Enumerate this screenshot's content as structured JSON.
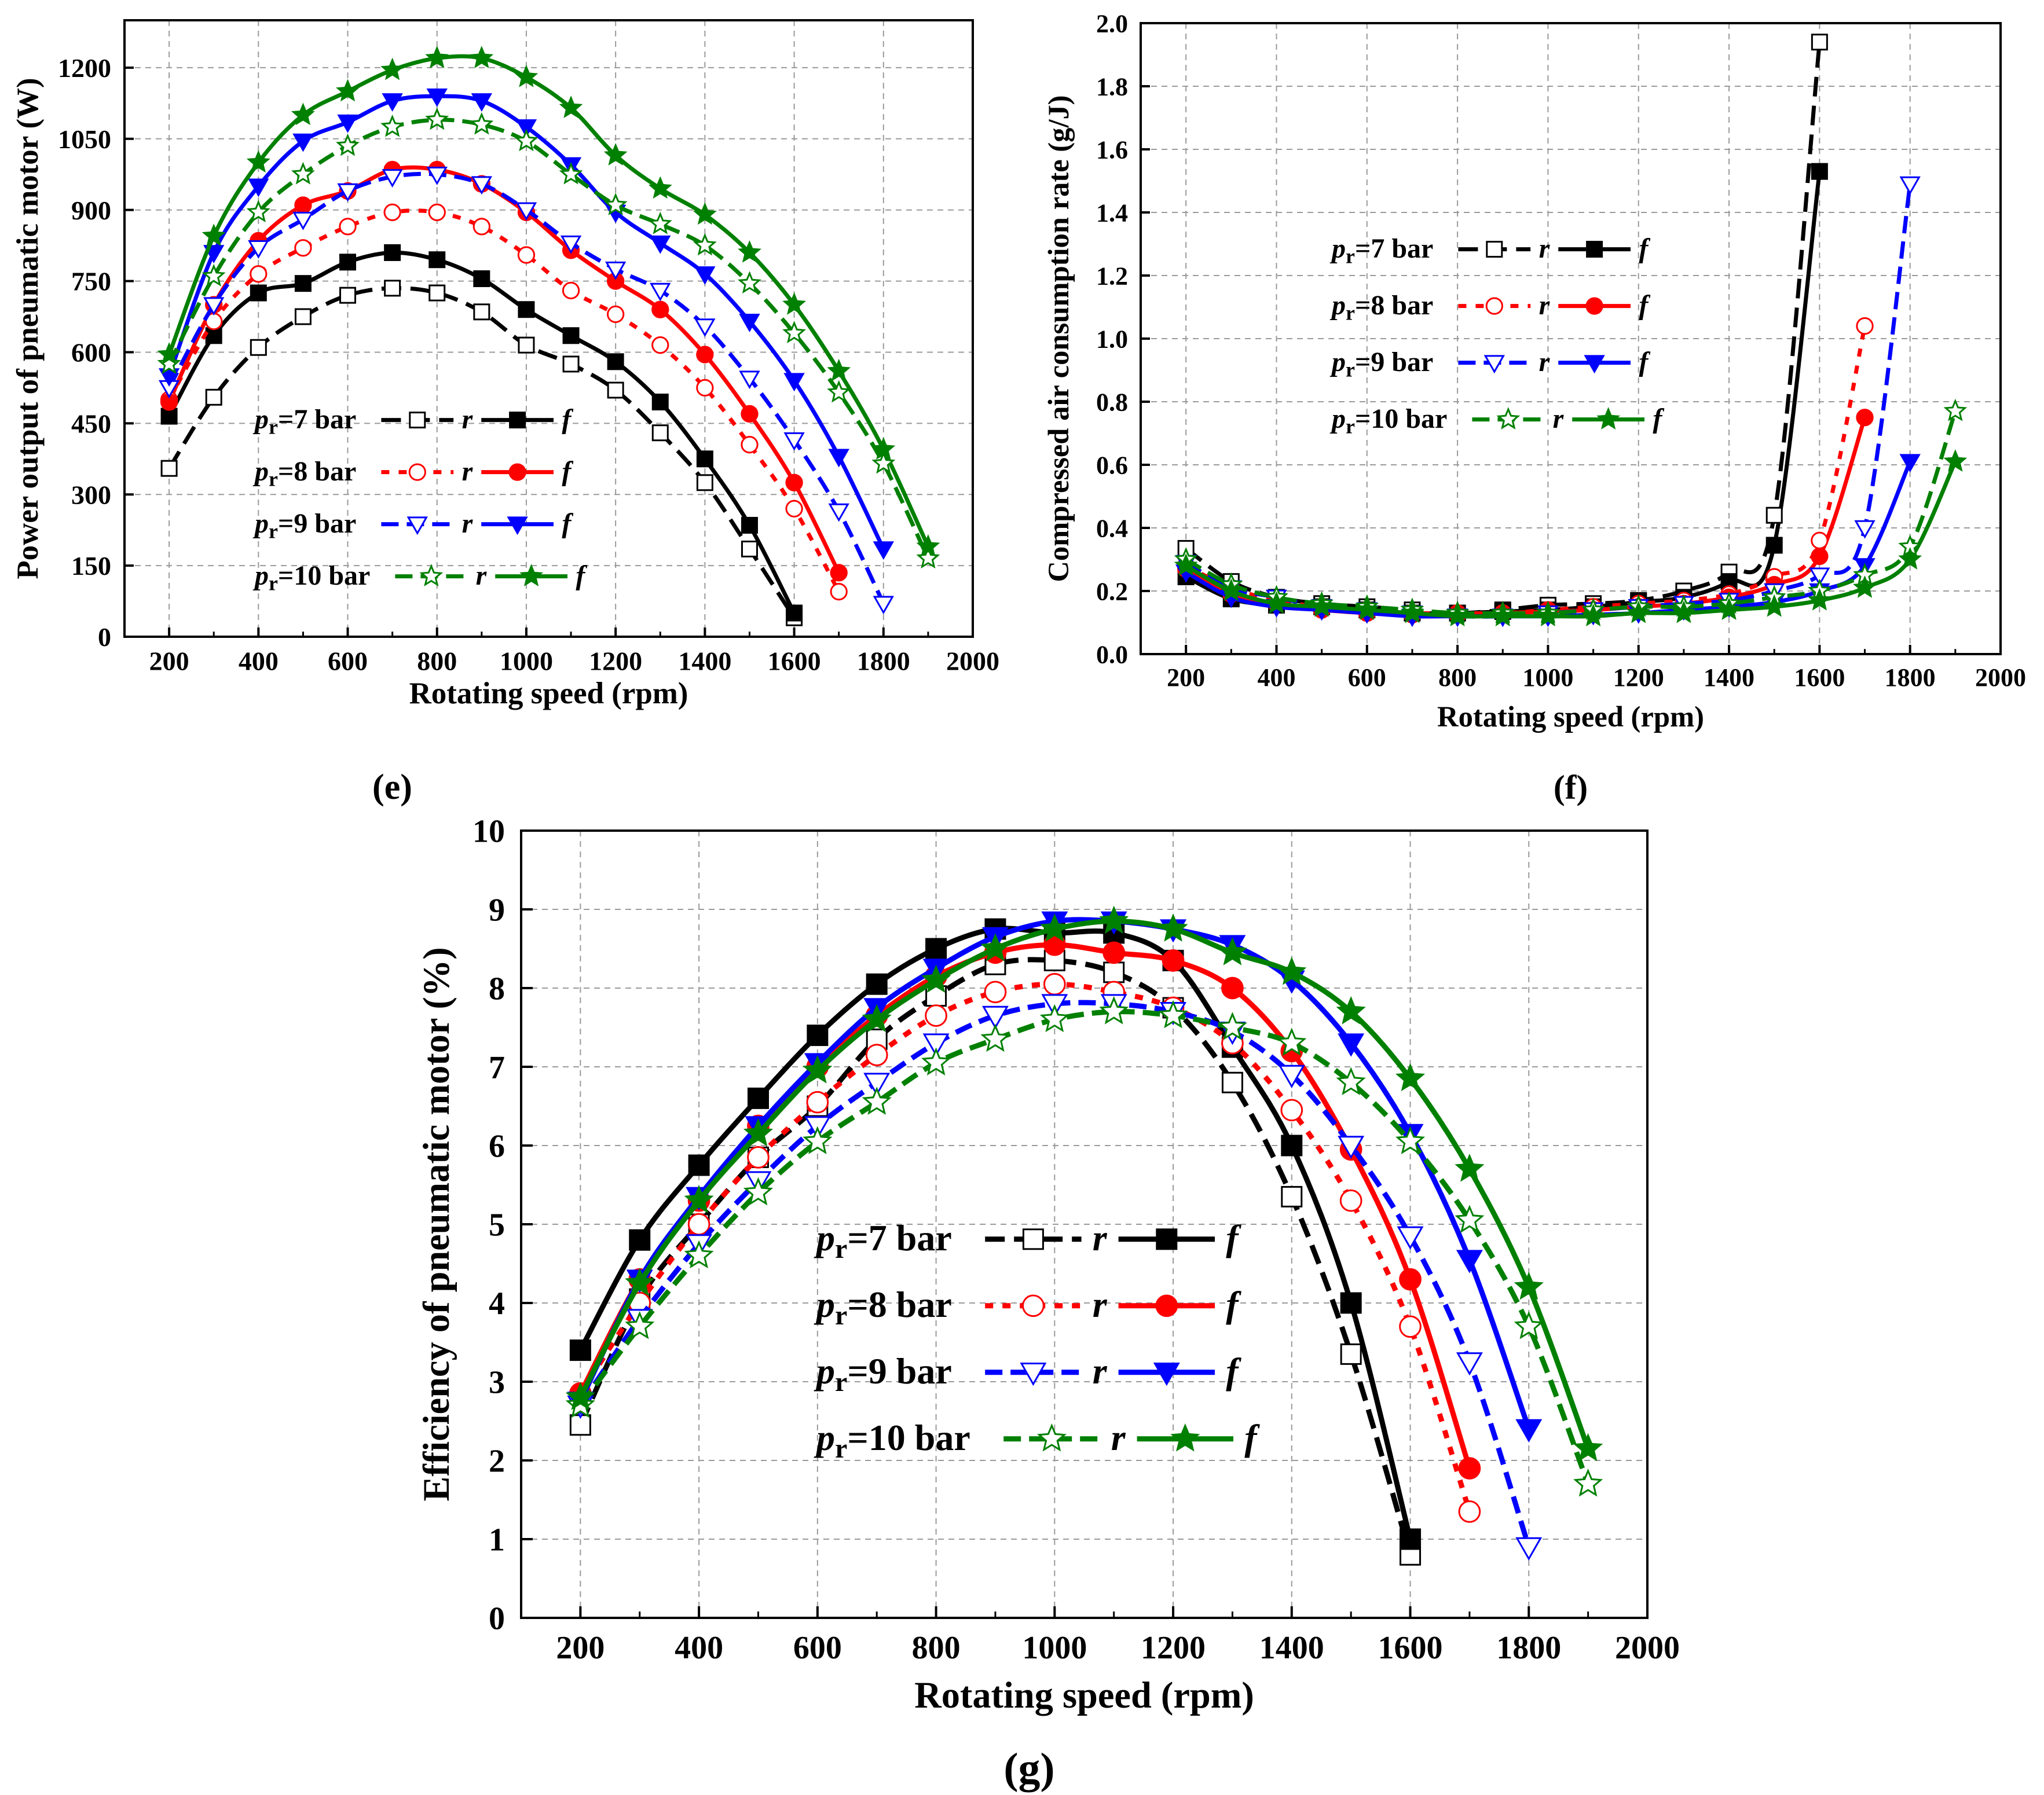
{
  "colors": {
    "7": "#000000",
    "8": "#ff0000",
    "9": "#0000ff",
    "10": "#008000"
  },
  "legend_labels": {
    "p": "p",
    "sub": "r",
    "r": "r",
    "f": "f"
  },
  "chart_data": [
    {
      "id": "e",
      "type": "line",
      "panel_label": "(e)",
      "xlabel": "Rotating speed (rpm)",
      "ylabel": "Power output of pneumatic motor (W)",
      "xlim": [
        100,
        2000
      ],
      "ylim": [
        0,
        1300
      ],
      "xticks": [
        200,
        400,
        600,
        800,
        1000,
        1200,
        1400,
        1600,
        1800,
        2000
      ],
      "yticks": [
        0,
        150,
        300,
        450,
        600,
        750,
        900,
        1050,
        1200
      ],
      "grid": true,
      "legend_position": "lower-left",
      "series": [
        {
          "pressure": "7",
          "label": "=7 bar",
          "x": [
            200,
            300,
            400,
            500,
            600,
            700,
            800,
            900,
            1000,
            1100,
            1200,
            1300,
            1400,
            1500,
            1600
          ],
          "r": [
            355,
            505,
            610,
            675,
            720,
            735,
            725,
            685,
            615,
            575,
            520,
            430,
            325,
            185,
            40
          ],
          "f": [
            465,
            635,
            725,
            745,
            790,
            810,
            795,
            755,
            690,
            635,
            580,
            495,
            375,
            235,
            50
          ]
        },
        {
          "pressure": "8",
          "label": "=8 bar",
          "x": [
            200,
            300,
            400,
            500,
            600,
            700,
            800,
            900,
            1000,
            1100,
            1200,
            1300,
            1400,
            1500,
            1600,
            1700
          ],
          "r": [
            500,
            665,
            765,
            820,
            865,
            895,
            895,
            865,
            805,
            730,
            680,
            615,
            525,
            405,
            270,
            95
          ],
          "f": [
            495,
            700,
            835,
            910,
            940,
            985,
            985,
            955,
            895,
            815,
            750,
            690,
            595,
            470,
            325,
            135
          ]
        },
        {
          "pressure": "9",
          "label": "=9 bar",
          "x": [
            200,
            300,
            400,
            500,
            600,
            700,
            800,
            900,
            1000,
            1100,
            1200,
            1300,
            1400,
            1500,
            1600,
            1700,
            1800
          ],
          "r": [
            525,
            700,
            820,
            880,
            940,
            970,
            975,
            955,
            900,
            830,
            775,
            730,
            655,
            545,
            415,
            265,
            70
          ],
          "f": [
            550,
            810,
            950,
            1045,
            1085,
            1130,
            1140,
            1130,
            1075,
            995,
            895,
            830,
            765,
            665,
            540,
            380,
            185
          ]
        },
        {
          "pressure": "10",
          "label": "=10 bar",
          "x": [
            200,
            300,
            400,
            500,
            600,
            700,
            800,
            900,
            1000,
            1100,
            1200,
            1300,
            1400,
            1500,
            1600,
            1700,
            1800,
            1900
          ],
          "r": [
            575,
            760,
            895,
            975,
            1035,
            1075,
            1090,
            1080,
            1045,
            975,
            910,
            870,
            825,
            745,
            640,
            515,
            365,
            165
          ],
          "f": [
            595,
            845,
            1000,
            1100,
            1150,
            1195,
            1220,
            1220,
            1180,
            1115,
            1015,
            945,
            890,
            810,
            700,
            560,
            395,
            190
          ]
        }
      ]
    },
    {
      "id": "f",
      "type": "line",
      "panel_label": "(f)",
      "xlabel": "Rotating speed (rpm)",
      "ylabel": "Compressed air consumption rate  (g/J)",
      "xlim": [
        100,
        2000
      ],
      "ylim": [
        0,
        2.0
      ],
      "xticks": [
        200,
        400,
        600,
        800,
        1000,
        1200,
        1400,
        1600,
        1800,
        2000
      ],
      "yticks": [
        0.0,
        0.2,
        0.4,
        0.6,
        0.8,
        1.0,
        1.2,
        1.4,
        1.6,
        1.8,
        2.0
      ],
      "ytick_labels": [
        "0.0",
        "0.2",
        "0.4",
        "0.6",
        "0.8",
        "1.0",
        "1.2",
        "1.4",
        "1.6",
        "1.8",
        "2.0"
      ],
      "grid": true,
      "legend_position": "upper-left",
      "series": [
        {
          "pressure": "7",
          "label": "=7 bar",
          "x": [
            200,
            300,
            400,
            500,
            600,
            700,
            800,
            900,
            1000,
            1100,
            1200,
            1300,
            1400,
            1500,
            1600
          ],
          "r": [
            0.335,
            0.23,
            0.18,
            0.16,
            0.15,
            0.14,
            0.13,
            0.14,
            0.155,
            0.16,
            0.17,
            0.2,
            0.26,
            0.44,
            1.94
          ],
          "f": [
            0.245,
            0.175,
            0.155,
            0.15,
            0.14,
            0.13,
            0.13,
            0.135,
            0.14,
            0.15,
            0.165,
            0.18,
            0.23,
            0.345,
            1.53
          ]
        },
        {
          "pressure": "8",
          "label": "=8 bar",
          "x": [
            200,
            300,
            400,
            500,
            600,
            700,
            800,
            900,
            1000,
            1100,
            1200,
            1300,
            1400,
            1500,
            1600,
            1700
          ],
          "r": [
            0.28,
            0.21,
            0.17,
            0.15,
            0.14,
            0.13,
            0.13,
            0.13,
            0.14,
            0.15,
            0.16,
            0.17,
            0.19,
            0.245,
            0.36,
            1.04
          ],
          "f": [
            0.27,
            0.19,
            0.16,
            0.14,
            0.13,
            0.125,
            0.125,
            0.13,
            0.135,
            0.14,
            0.15,
            0.16,
            0.18,
            0.22,
            0.31,
            0.75
          ]
        },
        {
          "pressure": "9",
          "label": "=9 bar",
          "x": [
            200,
            300,
            400,
            500,
            600,
            700,
            800,
            900,
            1000,
            1100,
            1200,
            1300,
            1400,
            1500,
            1600,
            1700,
            1800
          ],
          "r": [
            0.29,
            0.21,
            0.18,
            0.15,
            0.14,
            0.13,
            0.12,
            0.12,
            0.13,
            0.14,
            0.15,
            0.16,
            0.17,
            0.2,
            0.25,
            0.4,
            1.49
          ],
          "f": [
            0.26,
            0.18,
            0.15,
            0.14,
            0.13,
            0.12,
            0.12,
            0.12,
            0.12,
            0.125,
            0.13,
            0.14,
            0.15,
            0.165,
            0.2,
            0.28,
            0.61
          ]
        },
        {
          "pressure": "10",
          "label": "=10 bar",
          "x": [
            200,
            300,
            400,
            500,
            600,
            700,
            800,
            900,
            1000,
            1100,
            1200,
            1300,
            1400,
            1500,
            1600,
            1700,
            1800,
            1900
          ],
          "r": [
            0.3,
            0.22,
            0.18,
            0.16,
            0.15,
            0.14,
            0.13,
            0.13,
            0.13,
            0.14,
            0.15,
            0.15,
            0.16,
            0.18,
            0.2,
            0.25,
            0.34,
            0.77
          ],
          "f": [
            0.28,
            0.2,
            0.16,
            0.15,
            0.14,
            0.13,
            0.12,
            0.12,
            0.12,
            0.12,
            0.13,
            0.13,
            0.14,
            0.15,
            0.17,
            0.21,
            0.3,
            0.61
          ]
        }
      ]
    },
    {
      "id": "g",
      "type": "line",
      "panel_label": "(g)",
      "xlabel": "Rotating speed (rpm)",
      "ylabel": "Efficiency of pneumatic motor (%)",
      "xlim": [
        100,
        2000
      ],
      "ylim": [
        0,
        10
      ],
      "xticks": [
        200,
        400,
        600,
        800,
        1000,
        1200,
        1400,
        1600,
        1800,
        2000
      ],
      "yticks": [
        0,
        1,
        2,
        3,
        4,
        5,
        6,
        7,
        8,
        9,
        10
      ],
      "grid": true,
      "legend_position": "center",
      "series": [
        {
          "pressure": "7",
          "label": "=7 bar",
          "x": [
            200,
            300,
            400,
            500,
            600,
            700,
            800,
            900,
            1000,
            1100,
            1200,
            1300,
            1400,
            1500,
            1600
          ],
          "r": [
            2.45,
            4.05,
            5.0,
            5.85,
            6.5,
            7.35,
            7.9,
            8.3,
            8.35,
            8.2,
            7.75,
            6.8,
            5.35,
            3.35,
            0.8
          ],
          "f": [
            3.4,
            4.8,
            5.75,
            6.6,
            7.4,
            8.05,
            8.5,
            8.75,
            8.7,
            8.7,
            8.35,
            7.25,
            6.0,
            4.0,
            1.0
          ]
        },
        {
          "pressure": "8",
          "label": "=8 bar",
          "x": [
            200,
            300,
            400,
            500,
            600,
            700,
            800,
            900,
            1000,
            1100,
            1200,
            1300,
            1400,
            1500,
            1600,
            1700
          ],
          "r": [
            2.85,
            4.0,
            5.0,
            5.85,
            6.55,
            7.15,
            7.65,
            7.95,
            8.05,
            7.95,
            7.75,
            7.3,
            6.45,
            5.3,
            3.7,
            1.35
          ],
          "f": [
            2.85,
            4.3,
            5.3,
            6.25,
            7.0,
            7.65,
            8.15,
            8.45,
            8.55,
            8.45,
            8.35,
            8.0,
            7.2,
            5.95,
            4.3,
            1.9
          ]
        },
        {
          "pressure": "9",
          "label": "=9 bar",
          "x": [
            200,
            300,
            400,
            500,
            600,
            700,
            800,
            900,
            1000,
            1100,
            1200,
            1300,
            1400,
            1500,
            1600,
            1700,
            1800
          ],
          "r": [
            2.7,
            3.8,
            4.75,
            5.55,
            6.25,
            6.8,
            7.3,
            7.65,
            7.8,
            7.8,
            7.7,
            7.45,
            6.9,
            6.0,
            4.85,
            3.25,
            0.9
          ],
          "f": [
            2.75,
            4.3,
            5.35,
            6.25,
            7.05,
            7.75,
            8.25,
            8.65,
            8.85,
            8.85,
            8.75,
            8.55,
            8.1,
            7.3,
            6.15,
            4.55,
            2.4
          ]
        },
        {
          "pressure": "10",
          "label": "=10 bar",
          "x": [
            200,
            300,
            400,
            500,
            600,
            700,
            800,
            900,
            1000,
            1100,
            1200,
            1300,
            1400,
            1500,
            1600,
            1700,
            1800,
            1900
          ],
          "r": [
            2.7,
            3.7,
            4.6,
            5.4,
            6.05,
            6.55,
            7.05,
            7.35,
            7.6,
            7.7,
            7.65,
            7.5,
            7.3,
            6.8,
            6.05,
            5.05,
            3.7,
            1.7
          ],
          "f": [
            2.8,
            4.25,
            5.3,
            6.15,
            6.95,
            7.6,
            8.1,
            8.5,
            8.75,
            8.85,
            8.75,
            8.45,
            8.2,
            7.7,
            6.85,
            5.7,
            4.2,
            2.15
          ]
        }
      ]
    }
  ]
}
